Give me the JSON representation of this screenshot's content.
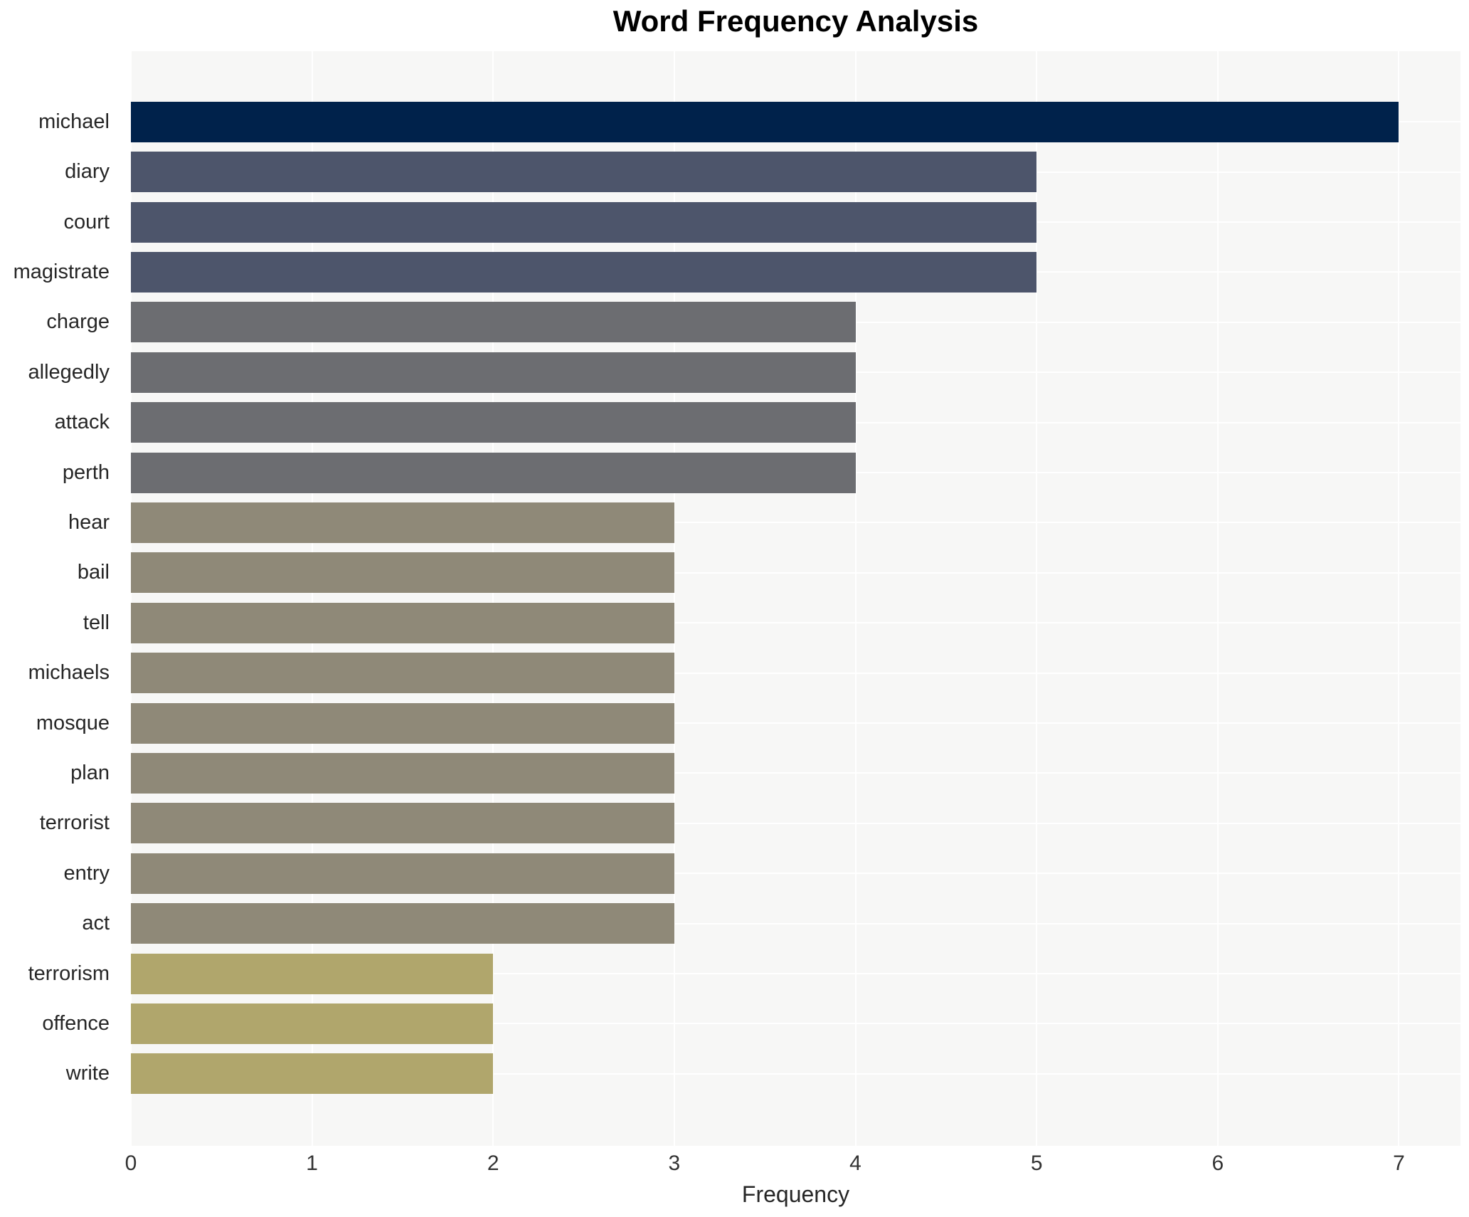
{
  "chart_data": {
    "type": "bar",
    "orientation": "horizontal",
    "title": "Word Frequency Analysis",
    "xlabel": "Frequency",
    "ylabel": "",
    "categories": [
      "michael",
      "diary",
      "court",
      "magistrate",
      "charge",
      "allegedly",
      "attack",
      "perth",
      "hear",
      "bail",
      "tell",
      "michaels",
      "mosque",
      "plan",
      "terrorist",
      "entry",
      "act",
      "terrorism",
      "offence",
      "write"
    ],
    "values": [
      7,
      5,
      5,
      5,
      4,
      4,
      4,
      4,
      3,
      3,
      3,
      3,
      3,
      3,
      3,
      3,
      3,
      2,
      2,
      2
    ],
    "xticks": [
      0,
      1,
      2,
      3,
      4,
      5,
      6,
      7
    ],
    "xlim": [
      0,
      7.34
    ],
    "grid": true,
    "legend": false,
    "value_colors": {
      "7": "#00224b",
      "5": "#4d556b",
      "4": "#6c6d71",
      "3": "#8f8978",
      "2": "#b0a66c"
    },
    "plot_bg": "#f7f7f6",
    "grid_color": "#ffffff",
    "text_color": "#262626"
  }
}
